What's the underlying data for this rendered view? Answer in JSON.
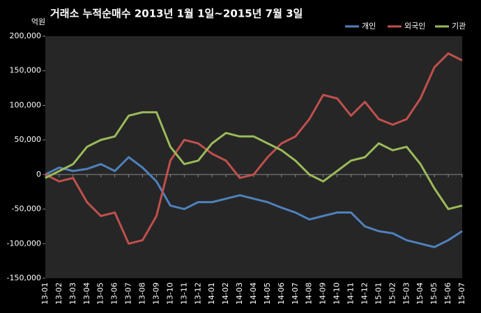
{
  "chart_data": {
    "type": "line",
    "title": "거래소  누적순매수 2013년 1월 1일~2015년 7월 3일",
    "y_unit": "억원",
    "categories": [
      "13-01",
      "13-02",
      "13-03",
      "13-04",
      "13-05",
      "13-06",
      "13-07",
      "13-08",
      "13-09",
      "13-10",
      "13-11",
      "13-12",
      "14-01",
      "14-02",
      "14-03",
      "14-04",
      "14-05",
      "14-06",
      "14-07",
      "14-08",
      "14-09",
      "14-10",
      "14-11",
      "14-12",
      "15-01",
      "15-02",
      "15-03",
      "15-04",
      "15-05",
      "15-06",
      "15-07"
    ],
    "series": [
      {
        "name": "개인",
        "color": "#4f81bd",
        "values": [
          0,
          10000,
          5000,
          8000,
          15000,
          5000,
          25000,
          10000,
          -10000,
          -45000,
          -50000,
          -40000,
          -40000,
          -35000,
          -30000,
          -35000,
          -40000,
          -48000,
          -55000,
          -65000,
          -60000,
          -55000,
          -55000,
          -75000,
          -82000,
          -85000,
          -95000,
          -100000,
          -105000,
          -95000,
          -82000
        ]
      },
      {
        "name": "외국인",
        "color": "#c0504d",
        "values": [
          0,
          -10000,
          -5000,
          -40000,
          -60000,
          -55000,
          -100000,
          -95000,
          -60000,
          20000,
          50000,
          45000,
          30000,
          20000,
          -5000,
          0,
          25000,
          45000,
          55000,
          80000,
          115000,
          110000,
          85000,
          105000,
          80000,
          72000,
          80000,
          110000,
          155000,
          175000,
          165000
        ]
      },
      {
        "name": "기관",
        "color": "#9bbb59",
        "values": [
          -5000,
          5000,
          15000,
          40000,
          50000,
          55000,
          85000,
          90000,
          90000,
          40000,
          15000,
          20000,
          45000,
          60000,
          55000,
          55000,
          45000,
          35000,
          20000,
          0,
          -10000,
          5000,
          20000,
          25000,
          45000,
          35000,
          40000,
          15000,
          -20000,
          -50000,
          -45000
        ]
      }
    ],
    "ylim": [
      -150000,
      200000
    ],
    "yticks": [
      {
        "value": -150000,
        "label": "-150,000"
      },
      {
        "value": -100000,
        "label": "-100,000"
      },
      {
        "value": -50000,
        "label": "-50,000"
      },
      0,
      {
        "value": 50000,
        "label": "50,000"
      },
      {
        "value": 100000,
        "label": "100,000"
      },
      {
        "value": 150000,
        "label": "150,000"
      },
      {
        "value": 200000,
        "label": "200,000"
      }
    ],
    "legend": "top-right"
  }
}
